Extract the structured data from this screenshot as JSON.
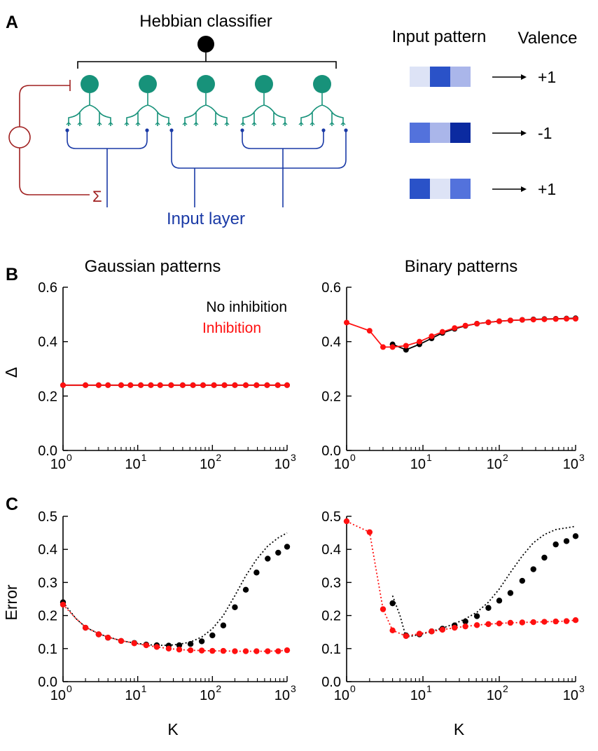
{
  "colors": {
    "teal": "#17927a",
    "blue": "#1a3aa6",
    "dark_red": "#a02020",
    "red": "#ff1010",
    "black": "#000000",
    "swatch_shades": [
      "#dde3f6",
      "#2a52c8",
      "#aab6ea",
      "#5372dc",
      "#0b2aa0"
    ]
  },
  "panel_a": {
    "letter": "A",
    "classifier_title": "Hebbian classifier",
    "input_layer_label": "Input layer",
    "sum_symbol": "Σ",
    "neuron_count": 5,
    "pattern_header": "Input pattern",
    "valence_header": "Valence",
    "patterns": [
      {
        "cells": [
          0,
          1,
          2
        ],
        "valence": "+1"
      },
      {
        "cells": [
          3,
          2,
          4
        ],
        "valence": "-1"
      },
      {
        "cells": [
          1,
          0,
          3
        ],
        "valence": "+1"
      }
    ]
  },
  "panel_b": {
    "letter": "B"
  },
  "panel_c": {
    "letter": "C"
  },
  "chart_data": [
    {
      "id": "b-gaussian",
      "type": "line",
      "title": "Gaussian patterns",
      "xlabel": "",
      "ylabel": "Δ",
      "xscale": "log",
      "xlim": [
        1,
        1000
      ],
      "ylim": [
        0,
        0.6
      ],
      "xticks": [
        "10^0",
        "10^1",
        "10^2",
        "10^3"
      ],
      "yticks": [
        "0.0",
        "0.2",
        "0.4",
        "0.6"
      ],
      "legend": {
        "placement": "top-right",
        "entries": [
          {
            "label": "No inhibition",
            "color": "#000000"
          },
          {
            "label": "Inhibition",
            "color": "#ff1010"
          }
        ]
      },
      "series": [
        {
          "name": "No inhibition",
          "color": "#000000",
          "style": "line-markers",
          "x": [
            1,
            2,
            3,
            4,
            6,
            8,
            11,
            15,
            20,
            28,
            40,
            55,
            75,
            105,
            145,
            200,
            280,
            390,
            540,
            750,
            1000
          ],
          "y": [
            0.24,
            0.24,
            0.24,
            0.24,
            0.24,
            0.24,
            0.24,
            0.24,
            0.24,
            0.24,
            0.24,
            0.24,
            0.24,
            0.24,
            0.24,
            0.24,
            0.24,
            0.24,
            0.24,
            0.24,
            0.24
          ]
        },
        {
          "name": "Inhibition",
          "color": "#ff1010",
          "style": "line-markers",
          "x": [
            1,
            2,
            3,
            4,
            6,
            8,
            11,
            15,
            20,
            28,
            40,
            55,
            75,
            105,
            145,
            200,
            280,
            390,
            540,
            750,
            1000
          ],
          "y": [
            0.24,
            0.24,
            0.24,
            0.24,
            0.24,
            0.24,
            0.24,
            0.24,
            0.24,
            0.24,
            0.24,
            0.24,
            0.24,
            0.24,
            0.24,
            0.24,
            0.24,
            0.24,
            0.24,
            0.24,
            0.24
          ]
        }
      ]
    },
    {
      "id": "b-binary",
      "type": "line",
      "title": "Binary patterns",
      "xlabel": "",
      "ylabel": "",
      "xscale": "log",
      "xlim": [
        1,
        1000
      ],
      "ylim": [
        0,
        0.6
      ],
      "xticks": [
        "10^0",
        "10^1",
        "10^2",
        "10^3"
      ],
      "yticks": [
        "0.0",
        "0.2",
        "0.4",
        "0.6"
      ],
      "series": [
        {
          "name": "No inhibition",
          "color": "#000000",
          "style": "line-markers",
          "x": [
            4,
            6,
            9,
            13,
            18,
            26,
            36,
            51,
            72,
            100,
            140,
            200,
            280,
            390,
            550,
            760,
            1000
          ],
          "y": [
            0.39,
            0.37,
            0.39,
            0.412,
            0.432,
            0.447,
            0.458,
            0.466,
            0.471,
            0.475,
            0.478,
            0.48,
            0.482,
            0.483,
            0.484,
            0.485,
            0.486
          ]
        },
        {
          "name": "Inhibition",
          "color": "#ff1010",
          "style": "line-markers",
          "x": [
            1,
            2,
            3,
            4,
            6,
            9,
            13,
            18,
            26,
            36,
            51,
            72,
            100,
            140,
            200,
            280,
            390,
            550,
            760,
            1000
          ],
          "y": [
            0.47,
            0.44,
            0.38,
            0.38,
            0.385,
            0.4,
            0.42,
            0.436,
            0.45,
            0.459,
            0.466,
            0.471,
            0.475,
            0.478,
            0.48,
            0.481,
            0.482,
            0.483,
            0.484,
            0.484
          ]
        }
      ]
    },
    {
      "id": "c-gaussian",
      "type": "line",
      "title": "",
      "xlabel": "K",
      "ylabel": "Error",
      "xscale": "log",
      "xlim": [
        1,
        1000
      ],
      "ylim": [
        0,
        0.5
      ],
      "xticks": [
        "10^0",
        "10^1",
        "10^2",
        "10^3"
      ],
      "yticks": [
        "0.0",
        "0.1",
        "0.2",
        "0.3",
        "0.4",
        "0.5"
      ],
      "series": [
        {
          "name": "No inhibition (simulation)",
          "color": "#000000",
          "style": "markers",
          "x": [
            1,
            2,
            3,
            4,
            6,
            9,
            13,
            18,
            26,
            36,
            51,
            72,
            100,
            140,
            200,
            280,
            390,
            550,
            760,
            1000
          ],
          "y": [
            0.24,
            0.163,
            0.143,
            0.133,
            0.123,
            0.117,
            0.112,
            0.11,
            0.109,
            0.11,
            0.114,
            0.122,
            0.14,
            0.17,
            0.225,
            0.278,
            0.33,
            0.372,
            0.39,
            0.408
          ]
        },
        {
          "name": "No inhibition (theory)",
          "color": "#000000",
          "style": "dotted",
          "x": [
            1,
            1.5,
            2,
            3,
            4,
            6,
            9,
            13,
            18,
            26,
            36,
            51,
            72,
            100,
            140,
            200,
            280,
            390,
            550,
            760,
            1000
          ],
          "y": [
            0.24,
            0.19,
            0.165,
            0.145,
            0.135,
            0.124,
            0.117,
            0.112,
            0.11,
            0.11,
            0.113,
            0.12,
            0.135,
            0.16,
            0.2,
            0.26,
            0.32,
            0.37,
            0.41,
            0.435,
            0.45
          ]
        },
        {
          "name": "Inhibition (simulation)",
          "color": "#ff1010",
          "style": "markers",
          "x": [
            1,
            2,
            3,
            4,
            6,
            9,
            13,
            18,
            26,
            36,
            51,
            72,
            100,
            140,
            200,
            280,
            390,
            550,
            760,
            1000
          ],
          "y": [
            0.233,
            0.163,
            0.143,
            0.133,
            0.123,
            0.116,
            0.11,
            0.105,
            0.1,
            0.097,
            0.095,
            0.094,
            0.093,
            0.093,
            0.092,
            0.092,
            0.092,
            0.092,
            0.092,
            0.095
          ]
        },
        {
          "name": "Inhibition (theory)",
          "color": "#ff1010",
          "style": "dotted",
          "x": [
            1,
            1.5,
            2,
            3,
            4,
            6,
            9,
            13,
            18,
            26,
            36,
            51,
            72,
            100,
            140,
            200,
            280,
            390,
            550,
            760,
            1000
          ],
          "y": [
            0.233,
            0.19,
            0.165,
            0.145,
            0.135,
            0.124,
            0.116,
            0.11,
            0.105,
            0.1,
            0.097,
            0.095,
            0.094,
            0.093,
            0.093,
            0.092,
            0.092,
            0.092,
            0.092,
            0.093,
            0.095
          ]
        }
      ]
    },
    {
      "id": "c-binary",
      "type": "line",
      "title": "",
      "xlabel": "K",
      "ylabel": "",
      "xscale": "log",
      "xlim": [
        1,
        1000
      ],
      "ylim": [
        0,
        0.5
      ],
      "xticks": [
        "10^0",
        "10^1",
        "10^2",
        "10^3"
      ],
      "yticks": [
        "0.0",
        "0.1",
        "0.2",
        "0.3",
        "0.4",
        "0.5"
      ],
      "series": [
        {
          "name": "No inhibition (simulation)",
          "color": "#000000",
          "style": "markers",
          "x": [
            4,
            6,
            9,
            13,
            18,
            26,
            36,
            51,
            72,
            100,
            140,
            200,
            280,
            390,
            550,
            760,
            1000
          ],
          "y": [
            0.237,
            0.14,
            0.143,
            0.152,
            0.16,
            0.17,
            0.182,
            0.198,
            0.223,
            0.245,
            0.268,
            0.305,
            0.34,
            0.375,
            0.415,
            0.425,
            0.44
          ]
        },
        {
          "name": "No inhibition (theory)",
          "color": "#000000",
          "style": "dotted",
          "x": [
            4,
            5,
            6,
            9,
            13,
            18,
            26,
            36,
            51,
            72,
            100,
            140,
            200,
            280,
            390,
            550,
            760,
            1000
          ],
          "y": [
            0.26,
            0.2,
            0.135,
            0.142,
            0.152,
            0.162,
            0.175,
            0.19,
            0.21,
            0.24,
            0.28,
            0.33,
            0.38,
            0.42,
            0.445,
            0.46,
            0.465,
            0.47
          ]
        },
        {
          "name": "Inhibition (simulation)",
          "color": "#ff1010",
          "style": "markers",
          "x": [
            1,
            2,
            3,
            4,
            6,
            9,
            13,
            18,
            26,
            36,
            51,
            72,
            100,
            140,
            200,
            280,
            390,
            550,
            760,
            1000
          ],
          "y": [
            0.485,
            0.452,
            0.219,
            0.155,
            0.138,
            0.145,
            0.152,
            0.157,
            0.163,
            0.167,
            0.171,
            0.174,
            0.176,
            0.178,
            0.179,
            0.18,
            0.181,
            0.182,
            0.183,
            0.186
          ]
        },
        {
          "name": "Inhibition (theory)",
          "color": "#ff1010",
          "style": "dotted",
          "x": [
            1,
            2,
            3,
            4,
            6,
            9,
            13,
            18,
            26,
            36,
            51,
            72,
            100,
            140,
            200,
            280,
            390,
            550,
            760,
            1000
          ],
          "y": [
            0.485,
            0.452,
            0.219,
            0.155,
            0.138,
            0.145,
            0.152,
            0.157,
            0.163,
            0.167,
            0.171,
            0.174,
            0.176,
            0.178,
            0.179,
            0.18,
            0.181,
            0.182,
            0.183,
            0.186
          ]
        }
      ]
    }
  ]
}
